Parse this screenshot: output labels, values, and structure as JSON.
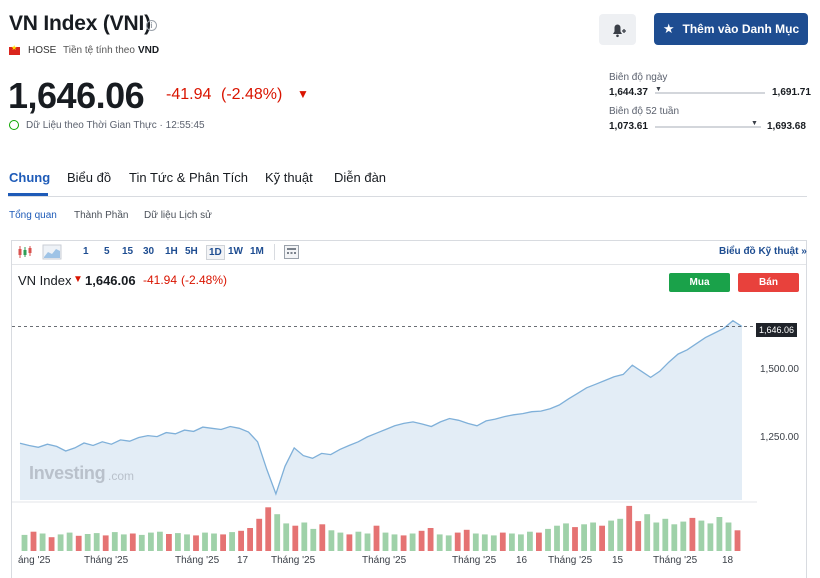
{
  "header": {
    "title": "VN Index (VNI)",
    "info_icon": "ⓘ",
    "exchange": "HOSE",
    "currency_label": "Tiền tệ tính theo",
    "currency": "VND",
    "watchlist_button": "Thêm vào Danh Mục",
    "alert_icon": "bell-plus-icon"
  },
  "quote": {
    "price": "1,646.06",
    "change": "-41.94",
    "change_pct": "(-2.48%)",
    "direction_icon": "▼",
    "realtime_text": "Dữ Liệu theo Thời Gian Thực · 12:55:45"
  },
  "ranges": {
    "day": {
      "label": "Biên độ ngày",
      "low": "1,644.37",
      "high": "1,691.71",
      "position": 0.02
    },
    "week52": {
      "label": "Biên độ 52 tuần",
      "low": "1,073.61",
      "high": "1,693.68",
      "position": 0.93
    }
  },
  "tabs": [
    "Chung",
    "Biểu đồ",
    "Tin Tức & Phân Tích",
    "Kỹ thuật",
    "Diễn đàn"
  ],
  "subtabs": [
    "Tổng quan",
    "Thành Phần",
    "Dữ liệu Lịch sử"
  ],
  "toolbar": {
    "intervals": [
      "1",
      "5",
      "15",
      "30",
      "1H",
      "5H",
      "1D",
      "1W",
      "1M"
    ],
    "selected": "1D",
    "link": "Biểu đồ Kỹ thuật »"
  },
  "legend": {
    "name": "VN Index",
    "arrow": "🡇",
    "price": "1,646.06",
    "change": "-41.94",
    "change_pct": "(-2.48%)",
    "buy": "Mua",
    "sell": "Bán"
  },
  "watermark": {
    "brand": "Investing",
    "suffix": ".com"
  },
  "colors": {
    "accent": "#1e4d91",
    "negative": "#d91400",
    "positive": "#1aa24a",
    "line": "#7fb0d9",
    "area": "#e3edf6",
    "vol_up": "#9fd1a9",
    "vol_down": "#e57373"
  },
  "chart_data": {
    "type": "area",
    "last_price": "1,646.06",
    "y_ticks": [
      "1,646.06",
      "1,500.00",
      "1,250.00"
    ],
    "ylim": [
      1080,
      1700
    ],
    "x_labels": [
      "áng '25",
      "Tháng '25",
      "Tháng '25",
      "17",
      "Tháng '25",
      "Tháng '25",
      "Tháng '25",
      "16",
      "Tháng '25",
      "15",
      "Tháng '25",
      "18"
    ],
    "series": [
      {
        "values": [
          1265,
          1258,
          1252,
          1262,
          1255,
          1240,
          1250,
          1266,
          1258,
          1270,
          1262,
          1276,
          1272,
          1284,
          1290,
          1287,
          1300,
          1296,
          1308,
          1304,
          1318,
          1314,
          1310,
          1320,
          1314,
          1302,
          1270,
          1180,
          1100,
          1190,
          1250,
          1225,
          1216,
          1232,
          1228,
          1245,
          1258,
          1270,
          1286,
          1298,
          1310,
          1322,
          1330,
          1335,
          1328,
          1320,
          1335,
          1346,
          1340,
          1330,
          1322,
          1338,
          1344,
          1352,
          1358,
          1362,
          1368,
          1370,
          1378,
          1390,
          1410,
          1428,
          1446,
          1458,
          1470,
          1482,
          1490,
          1520,
          1500,
          1480,
          1500,
          1530,
          1556,
          1570,
          1590,
          1610,
          1625,
          1640,
          1665,
          1646.06
        ]
      }
    ],
    "volume": [
      {
        "v": 0.35,
        "up": true
      },
      {
        "v": 0.42,
        "up": false
      },
      {
        "v": 0.38,
        "up": true
      },
      {
        "v": 0.3,
        "up": false
      },
      {
        "v": 0.36,
        "up": true
      },
      {
        "v": 0.4,
        "up": true
      },
      {
        "v": 0.33,
        "up": false
      },
      {
        "v": 0.37,
        "up": true
      },
      {
        "v": 0.39,
        "up": true
      },
      {
        "v": 0.34,
        "up": false
      },
      {
        "v": 0.41,
        "up": true
      },
      {
        "v": 0.36,
        "up": true
      },
      {
        "v": 0.38,
        "up": false
      },
      {
        "v": 0.35,
        "up": true
      },
      {
        "v": 0.4,
        "up": true
      },
      {
        "v": 0.42,
        "up": true
      },
      {
        "v": 0.37,
        "up": false
      },
      {
        "v": 0.39,
        "up": true
      },
      {
        "v": 0.36,
        "up": true
      },
      {
        "v": 0.34,
        "up": false
      },
      {
        "v": 0.4,
        "up": true
      },
      {
        "v": 0.38,
        "up": true
      },
      {
        "v": 0.36,
        "up": false
      },
      {
        "v": 0.41,
        "up": true
      },
      {
        "v": 0.44,
        "up": false
      },
      {
        "v": 0.5,
        "up": false
      },
      {
        "v": 0.7,
        "up": false
      },
      {
        "v": 0.95,
        "up": false
      },
      {
        "v": 0.8,
        "up": true
      },
      {
        "v": 0.6,
        "up": true
      },
      {
        "v": 0.55,
        "up": false
      },
      {
        "v": 0.62,
        "up": true
      },
      {
        "v": 0.48,
        "up": true
      },
      {
        "v": 0.58,
        "up": false
      },
      {
        "v": 0.45,
        "up": true
      },
      {
        "v": 0.4,
        "up": true
      },
      {
        "v": 0.36,
        "up": false
      },
      {
        "v": 0.42,
        "up": true
      },
      {
        "v": 0.38,
        "up": true
      },
      {
        "v": 0.55,
        "up": false
      },
      {
        "v": 0.4,
        "up": true
      },
      {
        "v": 0.36,
        "up": true
      },
      {
        "v": 0.34,
        "up": false
      },
      {
        "v": 0.38,
        "up": true
      },
      {
        "v": 0.44,
        "up": false
      },
      {
        "v": 0.5,
        "up": false
      },
      {
        "v": 0.36,
        "up": true
      },
      {
        "v": 0.34,
        "up": true
      },
      {
        "v": 0.4,
        "up": false
      },
      {
        "v": 0.46,
        "up": false
      },
      {
        "v": 0.38,
        "up": true
      },
      {
        "v": 0.36,
        "up": true
      },
      {
        "v": 0.34,
        "up": true
      },
      {
        "v": 0.4,
        "up": false
      },
      {
        "v": 0.38,
        "up": true
      },
      {
        "v": 0.36,
        "up": true
      },
      {
        "v": 0.42,
        "up": true
      },
      {
        "v": 0.4,
        "up": false
      },
      {
        "v": 0.48,
        "up": true
      },
      {
        "v": 0.55,
        "up": true
      },
      {
        "v": 0.6,
        "up": true
      },
      {
        "v": 0.52,
        "up": false
      },
      {
        "v": 0.58,
        "up": true
      },
      {
        "v": 0.62,
        "up": true
      },
      {
        "v": 0.55,
        "up": false
      },
      {
        "v": 0.66,
        "up": true
      },
      {
        "v": 0.7,
        "up": true
      },
      {
        "v": 0.98,
        "up": false
      },
      {
        "v": 0.65,
        "up": false
      },
      {
        "v": 0.8,
        "up": true
      },
      {
        "v": 0.62,
        "up": true
      },
      {
        "v": 0.7,
        "up": true
      },
      {
        "v": 0.58,
        "up": true
      },
      {
        "v": 0.64,
        "up": true
      },
      {
        "v": 0.72,
        "up": false
      },
      {
        "v": 0.66,
        "up": true
      },
      {
        "v": 0.6,
        "up": true
      },
      {
        "v": 0.74,
        "up": true
      },
      {
        "v": 0.62,
        "up": true
      },
      {
        "v": 0.45,
        "up": false
      }
    ]
  }
}
